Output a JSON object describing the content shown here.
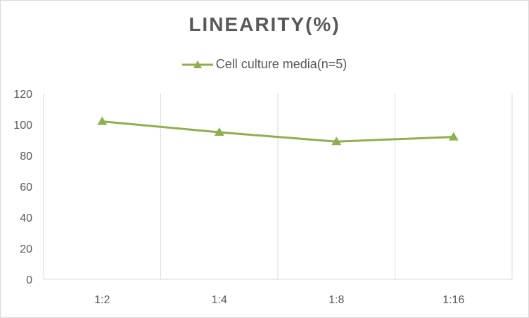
{
  "chart_data": {
    "type": "line",
    "title": "LINEARITY(%)",
    "categories": [
      "1:2",
      "1:4",
      "1:8",
      "1:16"
    ],
    "series": [
      {
        "name": "Cell culture media(n=5)",
        "values": [
          102,
          95,
          89,
          92
        ],
        "color": "#8faf4f"
      }
    ],
    "yticks": [
      0,
      20,
      40,
      60,
      80,
      100,
      120
    ],
    "ylim": [
      0,
      120
    ],
    "grid": "vertical",
    "legend": "top",
    "marker": "triangle"
  }
}
